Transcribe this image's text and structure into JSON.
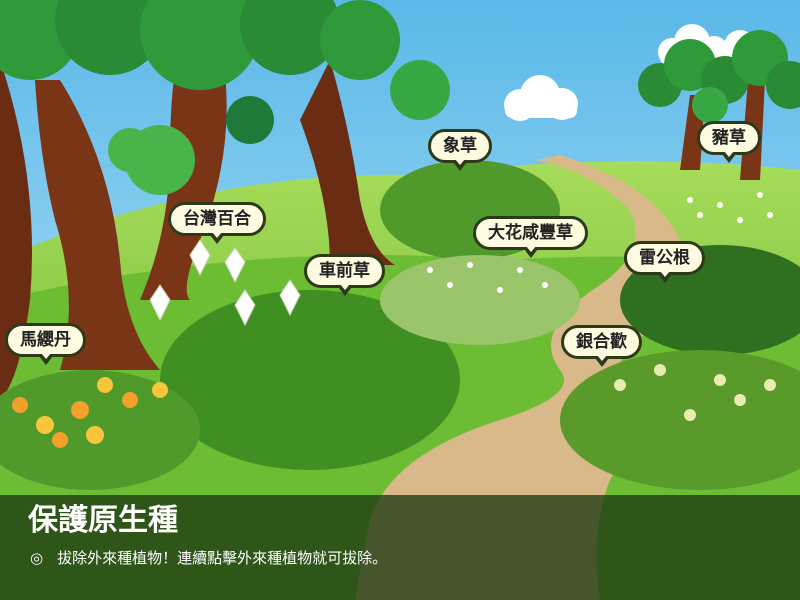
{
  "game": {
    "title": "保護原生種",
    "instruction_icon": "◎",
    "instruction": "拔除外來種植物！連續點擊外來種植物就可拔除。"
  },
  "plants": [
    {
      "id": "zhu-cao",
      "label": "豬草"
    },
    {
      "id": "xiang-cao",
      "label": "象草"
    },
    {
      "id": "taiwan-baihe",
      "label": "台灣百合"
    },
    {
      "id": "dahua-xianfengcao",
      "label": "大花咸豐草"
    },
    {
      "id": "lei-gong-gen",
      "label": "雷公根"
    },
    {
      "id": "che-qian-cao",
      "label": "車前草"
    },
    {
      "id": "ma-ying-dan",
      "label": "馬纓丹"
    },
    {
      "id": "yin-he-huan",
      "label": "銀合歡"
    }
  ],
  "colors": {
    "sky": "#6ec0e8",
    "grass": "#7cc63a",
    "dark_grass": "#3f8f22",
    "path": "#d9b98a",
    "trunk": "#7a3516",
    "foliage": "#2f9a3a",
    "label_bg": "#fffbe0",
    "label_border": "#2d3a1a",
    "panel": "#1c3812"
  }
}
